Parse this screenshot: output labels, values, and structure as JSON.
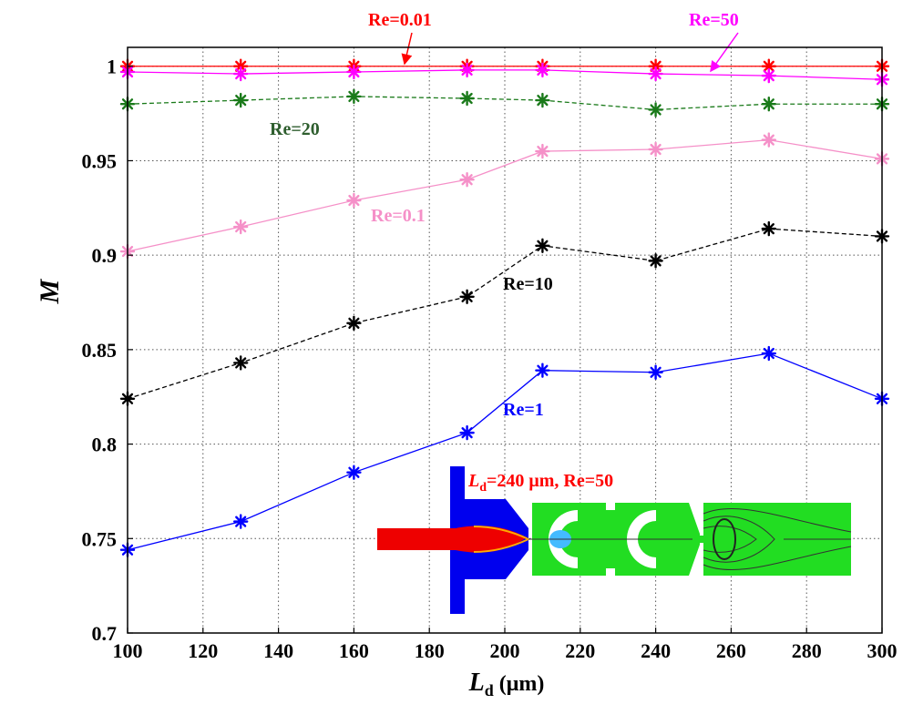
{
  "chart_data": {
    "type": "line",
    "x": [
      100,
      130,
      160,
      190,
      210,
      240,
      270,
      300
    ],
    "xticks": [
      100,
      120,
      140,
      160,
      180,
      200,
      220,
      240,
      260,
      280,
      300
    ],
    "yticks": [
      0.7,
      0.75,
      0.8,
      0.85,
      0.9,
      0.95,
      1
    ],
    "ytick_labels": [
      "0.7",
      "0.75",
      "0.8",
      "0.85",
      "0.9",
      "0.95",
      "1"
    ],
    "xlim": [
      100,
      300
    ],
    "ylim": [
      0.7,
      1.01
    ],
    "xlabel_main": "L",
    "xlabel_sub": "d",
    "xlabel_unit": " (μm)",
    "ylabel": "M",
    "grid": true,
    "series": [
      {
        "name": "Re=0.01",
        "color": "#ff0000",
        "dash": "solid",
        "values": [
          1.0,
          1.0,
          1.0,
          1.0,
          1.0,
          1.0,
          1.0,
          1.0
        ]
      },
      {
        "name": "Re=50",
        "color": "#ff00ff",
        "dash": "solid",
        "values": [
          0.997,
          0.996,
          0.997,
          0.998,
          0.998,
          0.996,
          0.995,
          0.993
        ]
      },
      {
        "name": "Re=20",
        "color": "#1a7a1a",
        "dash": "dashed",
        "values": [
          0.98,
          0.982,
          0.984,
          0.983,
          0.982,
          0.977,
          0.98,
          0.98
        ]
      },
      {
        "name": "Re=0.1",
        "color": "#f590c8",
        "dash": "solid",
        "values": [
          0.902,
          0.915,
          0.929,
          0.94,
          0.955,
          0.956,
          0.961,
          0.951
        ]
      },
      {
        "name": "Re=10",
        "color": "#000000",
        "dash": "dashed",
        "values": [
          0.824,
          0.843,
          0.864,
          0.878,
          0.905,
          0.897,
          0.914,
          0.91
        ]
      },
      {
        "name": "Re=1",
        "color": "#0000ff",
        "dash": "solid",
        "values": [
          0.744,
          0.759,
          0.785,
          0.806,
          0.839,
          0.838,
          0.848,
          0.824
        ]
      }
    ],
    "annotations": [
      {
        "text": "Re=0.01",
        "color": "#ff0000"
      },
      {
        "text": "Re=50",
        "color": "#ff00ff"
      },
      {
        "text": "Re=20",
        "color": "#2e5e2e"
      },
      {
        "text": "Re=0.1",
        "color": "#f590c8"
      },
      {
        "text": "Re=10",
        "color": "#000000"
      },
      {
        "text": "Re=1",
        "color": "#0000ff"
      }
    ],
    "inset_label": {
      "main": "L",
      "sub": "d",
      "rest": "=240 μm, Re=50",
      "color": "#ff0000"
    }
  }
}
